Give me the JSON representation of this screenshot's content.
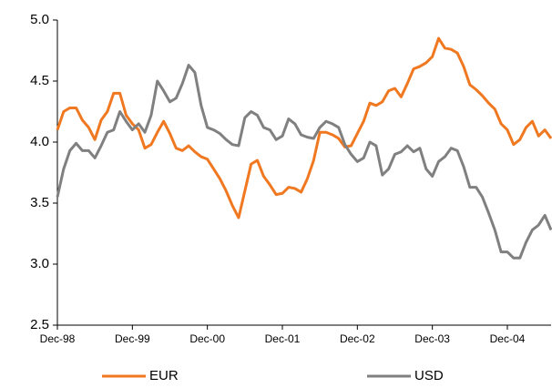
{
  "chart_data": {
    "type": "line",
    "categories": [
      "Dec-98",
      null,
      null,
      null,
      null,
      null,
      null,
      null,
      null,
      null,
      null,
      null,
      "Dec-99",
      null,
      null,
      null,
      null,
      null,
      null,
      null,
      null,
      null,
      null,
      null,
      "Dec-00",
      null,
      null,
      null,
      null,
      null,
      null,
      null,
      null,
      null,
      null,
      null,
      "Dec-01",
      null,
      null,
      null,
      null,
      null,
      null,
      null,
      null,
      null,
      null,
      null,
      "Dec-02",
      null,
      null,
      null,
      null,
      null,
      null,
      null,
      null,
      null,
      null,
      null,
      "Dec-03",
      null,
      null,
      null,
      null,
      null,
      null,
      null,
      null,
      null,
      null,
      null,
      "Dec-04",
      null,
      null,
      null,
      null,
      null,
      null,
      null
    ],
    "series": [
      {
        "name": "EUR",
        "color": "#f07820",
        "values": [
          4.1,
          4.25,
          4.28,
          4.28,
          4.18,
          4.12,
          4.02,
          4.18,
          4.25,
          4.4,
          4.4,
          4.22,
          4.15,
          4.1,
          3.95,
          3.98,
          4.08,
          4.17,
          4.07,
          3.95,
          3.93,
          3.97,
          3.92,
          3.88,
          3.86,
          3.78,
          3.7,
          3.6,
          3.48,
          3.38,
          3.6,
          3.82,
          3.85,
          3.72,
          3.65,
          3.57,
          3.58,
          3.63,
          3.62,
          3.59,
          3.7,
          3.85,
          4.08,
          4.08,
          4.06,
          4.03,
          3.96,
          3.97,
          4.07,
          4.17,
          4.32,
          4.3,
          4.33,
          4.42,
          4.44,
          4.37,
          4.48,
          4.6,
          4.62,
          4.65,
          4.7,
          4.85,
          4.77,
          4.76,
          4.73,
          4.62,
          4.47,
          4.43,
          4.38,
          4.32,
          4.27,
          4.15,
          4.1,
          3.98,
          4.02,
          4.12,
          4.17,
          4.05,
          4.1,
          4.03
        ]
      },
      {
        "name": "USD",
        "color": "#808080",
        "values": [
          3.55,
          3.78,
          3.93,
          3.99,
          3.93,
          3.93,
          3.87,
          3.97,
          4.08,
          4.1,
          4.25,
          4.17,
          4.1,
          4.15,
          4.08,
          4.22,
          4.5,
          4.42,
          4.33,
          4.36,
          4.48,
          4.63,
          4.57,
          4.3,
          4.12,
          4.1,
          4.07,
          4.02,
          3.98,
          3.97,
          4.2,
          4.25,
          4.22,
          4.12,
          4.1,
          4.02,
          4.05,
          4.19,
          4.15,
          4.06,
          4.04,
          4.03,
          4.12,
          4.17,
          4.15,
          4.12,
          3.98,
          3.9,
          3.84,
          3.87,
          4.0,
          3.97,
          3.73,
          3.78,
          3.9,
          3.92,
          3.97,
          3.92,
          3.95,
          3.78,
          3.72,
          3.84,
          3.88,
          3.95,
          3.93,
          3.8,
          3.63,
          3.63,
          3.55,
          3.42,
          3.28,
          3.1,
          3.1,
          3.05,
          3.05,
          3.18,
          3.28,
          3.32,
          3.4,
          3.28
        ]
      }
    ],
    "ylim": [
      2.5,
      5.0
    ],
    "yticks": [
      2.5,
      {
        "value": 3,
        "label": "3.0"
      },
      3.5,
      {
        "value": 4,
        "label": "4.0"
      },
      4.5,
      {
        "value": 5,
        "label": "5.0"
      }
    ],
    "grid": false,
    "legend": "bottom"
  }
}
